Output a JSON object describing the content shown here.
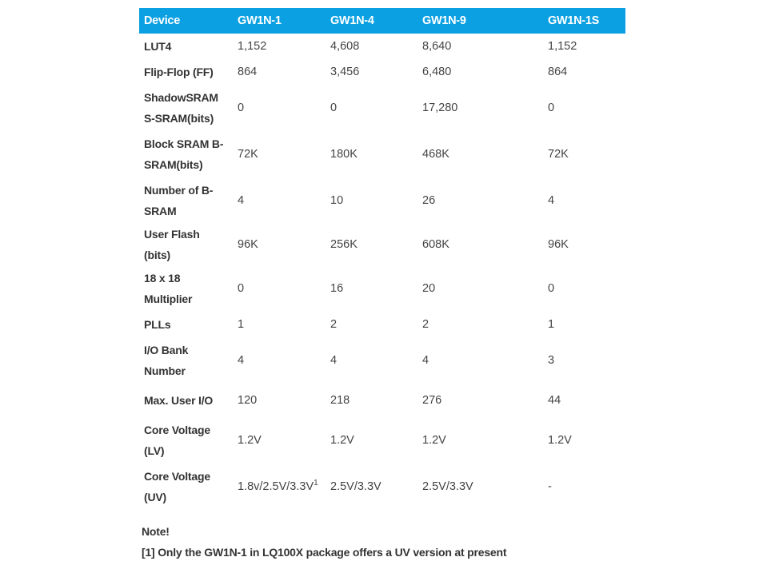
{
  "table": {
    "headers": [
      "Device",
      "GW1N-1",
      "GW1N-4",
      "GW1N-9",
      "GW1N-1S"
    ],
    "rows": [
      {
        "label": "LUT4",
        "values": [
          "1,152",
          "4,608",
          "8,640",
          "1,152"
        ]
      },
      {
        "label": "Flip-Flop (FF)",
        "values": [
          "864",
          "3,456",
          "6,480",
          "864"
        ]
      },
      {
        "label": "ShadowSRAM S-SRAM(bits)",
        "values": [
          "0",
          "0",
          "17,280",
          "0"
        ]
      },
      {
        "label": "Block SRAM B-SRAM(bits)",
        "values": [
          "72K",
          "180K",
          "468K",
          "72K"
        ]
      },
      {
        "label": "Number of B-SRAM",
        "values": [
          "4",
          "10",
          "26",
          "4"
        ]
      },
      {
        "label": "User Flash (bits)",
        "values": [
          "96K",
          "256K",
          "608K",
          "96K"
        ]
      },
      {
        "label": "18 x 18 Multiplier",
        "values": [
          "0",
          "16",
          "20",
          "0"
        ]
      },
      {
        "label": "PLLs",
        "values": [
          "1",
          "2",
          "2",
          "1"
        ]
      },
      {
        "label": "I/O Bank Number",
        "values": [
          "4",
          "4",
          "4",
          "3"
        ]
      },
      {
        "label": "Max. User I/O",
        "values": [
          "120",
          "218",
          "276",
          "44"
        ]
      },
      {
        "label": "Core Voltage (LV)",
        "values": [
          "1.2V",
          "1.2V",
          "1.2V",
          "1.2V"
        ]
      },
      {
        "label": "Core Voltage (UV)",
        "values": [
          "1.8v/2.5V/3.3V",
          "2.5V/3.3V",
          "2.5V/3.3V",
          "-"
        ],
        "footnote_mark": "1"
      }
    ]
  },
  "note": {
    "title": "Note!",
    "text": "[1] Only the GW1N-1 in LQ100X package offers a UV version at present"
  },
  "colors": {
    "header_bg": "#0aa0e2",
    "header_text": "#ffffff"
  }
}
